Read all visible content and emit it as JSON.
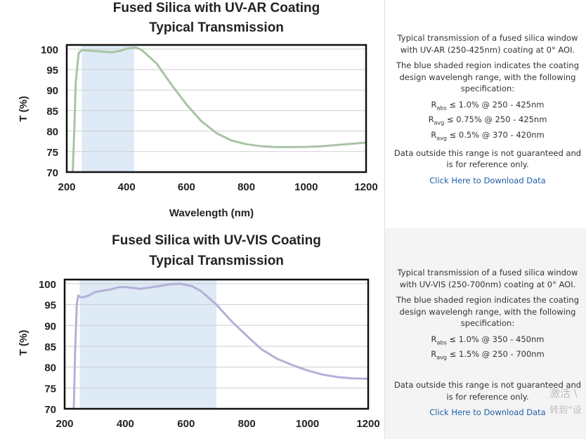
{
  "chart_data": [
    {
      "type": "line",
      "title": [
        "Fused Silica with UV-AR Coating",
        "Typical Transmission"
      ],
      "xlabel": "Wavelength (nm)",
      "ylabel": "T (%)",
      "xlim": [
        200,
        1200
      ],
      "ylim": [
        70,
        101
      ],
      "xticks": [
        "200",
        "400",
        "600",
        "800",
        "1000",
        "1200"
      ],
      "yticks": [
        "70",
        "75",
        "80",
        "85",
        "90",
        "95",
        "100"
      ],
      "shaded_region": [
        250,
        425
      ],
      "line_color": "#a9c4a5",
      "shade_color": "#deeaf5",
      "grid": true,
      "series": [
        {
          "x": [
            220,
            225,
            230,
            240,
            250,
            260,
            300,
            350,
            380,
            400,
            430,
            450,
            500,
            550,
            600,
            650,
            700,
            750,
            800,
            850,
            900,
            950,
            1000,
            1050,
            1100,
            1150,
            1200
          ],
          "y": [
            70,
            80,
            92,
            99,
            99.7,
            99.7,
            99.5,
            99.2,
            99.6,
            100.1,
            100.4,
            99.8,
            96.5,
            91.3,
            86.5,
            82.4,
            79.5,
            77.7,
            76.8,
            76.3,
            76.1,
            76.1,
            76.15,
            76.3,
            76.6,
            76.9,
            77.2
          ]
        }
      ]
    },
    {
      "type": "line",
      "title": [
        "Fused Silica with UV-VIS Coating",
        "Typical Transmission"
      ],
      "xlabel": "",
      "ylabel": "T (%)",
      "xlim": [
        200,
        1200
      ],
      "ylim": [
        70,
        101
      ],
      "xticks": [
        "200",
        "400",
        "600",
        "800",
        "1000",
        "1200"
      ],
      "yticks": [
        "70",
        "75",
        "80",
        "85",
        "90",
        "95",
        "100"
      ],
      "shaded_region": [
        250,
        700
      ],
      "line_color": "#b4b0d8",
      "shade_color": "#deeaf5",
      "grid": true,
      "series": [
        {
          "x": [
            230,
            235,
            240,
            245,
            250,
            260,
            280,
            300,
            350,
            380,
            400,
            450,
            500,
            550,
            580,
            620,
            650,
            700,
            750,
            800,
            850,
            900,
            950,
            1000,
            1050,
            1100,
            1150,
            1200
          ],
          "y": [
            70,
            85,
            95,
            97.2,
            96.8,
            96.7,
            97.2,
            98,
            98.6,
            99.2,
            99.2,
            98.8,
            99.3,
            99.9,
            100,
            99.4,
            98.2,
            95,
            91,
            87.5,
            84.2,
            82,
            80.5,
            79.2,
            78.2,
            77.6,
            77.3,
            77.2
          ]
        }
      ]
    }
  ],
  "panels": [
    {
      "intro": "Typical transmission of a fused silica window with UV-AR (250-425nm) coating at 0° AOI.",
      "region_note": "The blue shaded region indicates the coating design wavelengh range, with the following specification:",
      "specs": [
        {
          "sym": "R",
          "sub": "abs",
          "text": "≤ 1.0% @ 250 - 425nm"
        },
        {
          "sym": "R",
          "sub": "avg",
          "text": "≤ 0.75% @ 250 - 425nm"
        },
        {
          "sym": "R",
          "sub": "avg",
          "text": "≤ 0.5% @ 370 - 420nm"
        }
      ],
      "disclaimer": "Data outside this range is not guaranteed and is for reference only.",
      "download_label": "Click Here to Download Data"
    },
    {
      "intro": "Typical transmission of a fused silica window with UV-VIS (250-700nm) coating at 0° AOI.",
      "region_note": "The blue shaded region indicates the coating design wavelengh range, with the following specification:",
      "specs": [
        {
          "sym": "R",
          "sub": "abs",
          "text": "≤ 1.0% @ 350 - 450nm"
        },
        {
          "sym": "R",
          "sub": "avg",
          "text": "≤ 1.5% @ 250 - 700nm"
        }
      ],
      "disclaimer": "Data outside this range is not guaranteed and is for reference only.",
      "download_label": "Click Here to Download Data"
    }
  ],
  "watermark": {
    "line1": "激活 \\",
    "line2": "转到“设"
  }
}
